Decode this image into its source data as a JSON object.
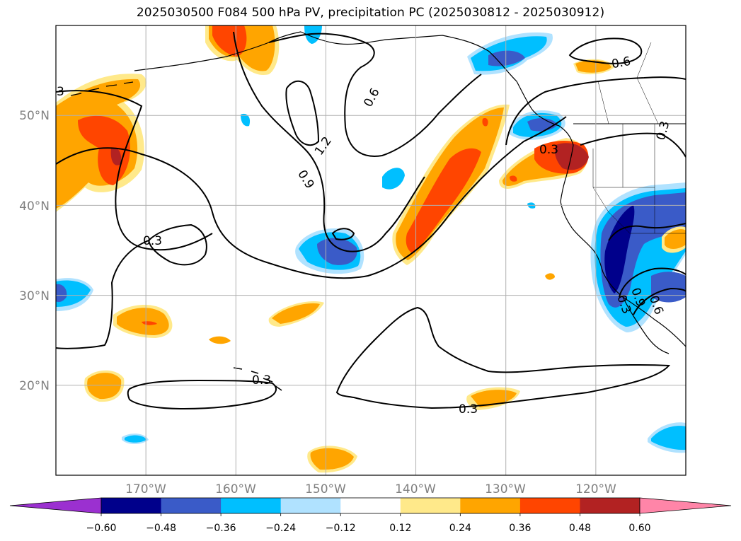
{
  "title": "2025030500 F084 500 hPa PV, precipitation PC (2025030812 - 2025030912)",
  "map": {
    "lon_range": [
      -180,
      -110
    ],
    "lat_range": [
      10,
      60
    ],
    "lat_ticks": [
      {
        "lat": 50,
        "label": "50°N"
      },
      {
        "lat": 40,
        "label": "40°N"
      },
      {
        "lat": 30,
        "label": "30°N"
      },
      {
        "lat": 20,
        "label": "20°N"
      }
    ],
    "lon_ticks": [
      {
        "lon": -170,
        "label": "170°W"
      },
      {
        "lon": -160,
        "label": "160°W"
      },
      {
        "lon": -150,
        "label": "150°W"
      },
      {
        "lon": -140,
        "label": "140°W"
      },
      {
        "lon": -130,
        "label": "130°W"
      },
      {
        "lon": -120,
        "label": "120°W"
      }
    ],
    "grid": true,
    "pv_contour_labels": [
      "3",
      "0.6",
      "1.2",
      "0.9",
      "0.3",
      "0.6",
      "0.3",
      "0.3",
      "0.3",
      "0.9",
      "0.3",
      "0.6"
    ]
  },
  "colorbar": {
    "levels": [
      "−0.60",
      "−0.48",
      "−0.36",
      "−0.24",
      "−0.12",
      "0.12",
      "0.24",
      "0.36",
      "0.48",
      "0.60"
    ],
    "colors": {
      "under": "#9b30d0",
      "bins": [
        "#00008b",
        "#3a5bc8",
        "#00bfff",
        "#b0e2ff",
        "#ffffff",
        "#ffe98a",
        "#ffa500",
        "#ff4500",
        "#b22222"
      ],
      "over": "#ff85a8"
    },
    "extend": "both"
  }
}
